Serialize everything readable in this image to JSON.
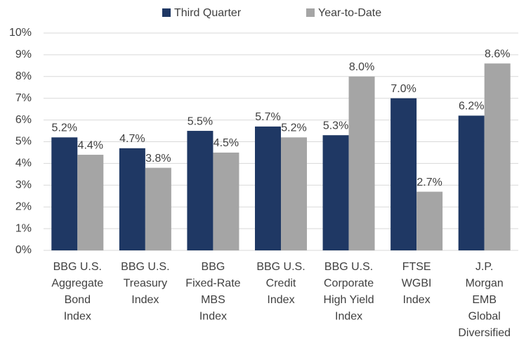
{
  "chart_data": {
    "type": "bar",
    "categories": [
      [
        "BBG U.S.",
        "Aggregate",
        "Bond",
        "Index"
      ],
      [
        "BBG U.S.",
        "Treasury",
        "Index"
      ],
      [
        "BBG",
        "Fixed-Rate",
        "MBS",
        "Index"
      ],
      [
        "BBG U.S.",
        "Credit",
        "Index"
      ],
      [
        "BBG U.S.",
        "Corporate",
        "High Yield",
        "Index"
      ],
      [
        "FTSE",
        "WGBI",
        "Index"
      ],
      [
        "J.P.",
        "Morgan",
        "EMB",
        "Global",
        "Diversified"
      ]
    ],
    "series": [
      {
        "name": "Third Quarter",
        "color": "#1f3864",
        "values": [
          5.2,
          4.7,
          5.5,
          5.7,
          5.3,
          7.0,
          6.2
        ],
        "value_labels": [
          "5.2%",
          "4.7%",
          "5.5%",
          "5.7%",
          "5.3%",
          "7.0%",
          "6.2%"
        ]
      },
      {
        "name": "Year-to-Date",
        "color": "#a5a5a5",
        "values": [
          4.4,
          3.8,
          4.5,
          5.2,
          8.0,
          2.7,
          8.6
        ],
        "value_labels": [
          "4.4%",
          "3.8%",
          "4.5%",
          "5.2%",
          "8.0%",
          "2.7%",
          "8.6%"
        ]
      }
    ],
    "ylim": [
      0,
      10
    ],
    "yticks": [
      {
        "value": 0,
        "label": "0%"
      },
      {
        "value": 1,
        "label": "1%"
      },
      {
        "value": 2,
        "label": "2%"
      },
      {
        "value": 3,
        "label": "3%"
      },
      {
        "value": 4,
        "label": "4%"
      },
      {
        "value": 5,
        "label": "5%"
      },
      {
        "value": 6,
        "label": "6%"
      },
      {
        "value": 7,
        "label": "7%"
      },
      {
        "value": 8,
        "label": "8%"
      },
      {
        "value": 9,
        "label": "9%"
      },
      {
        "value": 10,
        "label": "10%"
      }
    ],
    "grid": true,
    "legend": "top"
  }
}
